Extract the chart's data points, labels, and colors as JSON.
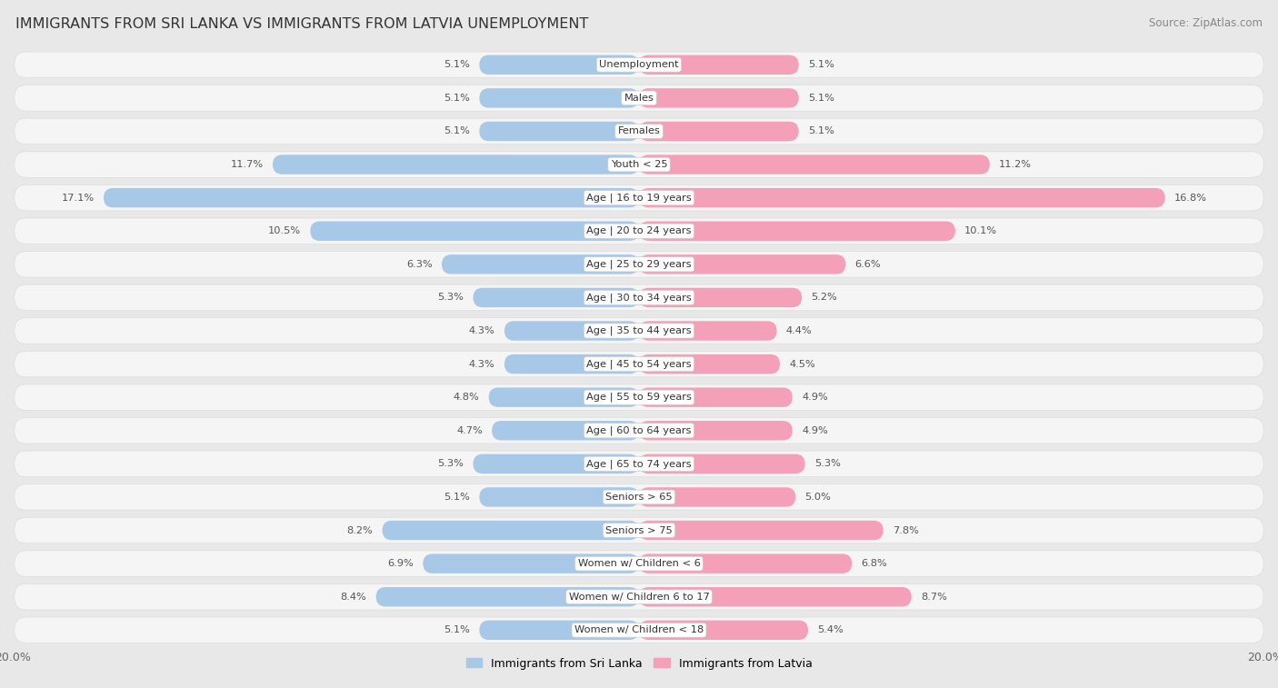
{
  "title": "IMMIGRANTS FROM SRI LANKA VS IMMIGRANTS FROM LATVIA UNEMPLOYMENT",
  "source": "Source: ZipAtlas.com",
  "categories": [
    "Unemployment",
    "Males",
    "Females",
    "Youth < 25",
    "Age | 16 to 19 years",
    "Age | 20 to 24 years",
    "Age | 25 to 29 years",
    "Age | 30 to 34 years",
    "Age | 35 to 44 years",
    "Age | 45 to 54 years",
    "Age | 55 to 59 years",
    "Age | 60 to 64 years",
    "Age | 65 to 74 years",
    "Seniors > 65",
    "Seniors > 75",
    "Women w/ Children < 6",
    "Women w/ Children 6 to 17",
    "Women w/ Children < 18"
  ],
  "sri_lanka": [
    5.1,
    5.1,
    5.1,
    11.7,
    17.1,
    10.5,
    6.3,
    5.3,
    4.3,
    4.3,
    4.8,
    4.7,
    5.3,
    5.1,
    8.2,
    6.9,
    8.4,
    5.1
  ],
  "latvia": [
    5.1,
    5.1,
    5.1,
    11.2,
    16.8,
    10.1,
    6.6,
    5.2,
    4.4,
    4.5,
    4.9,
    4.9,
    5.3,
    5.0,
    7.8,
    6.8,
    8.7,
    5.4
  ],
  "color_sri_lanka": "#a8c8e8",
  "color_latvia": "#f4a0b8",
  "bg_color": "#e8e8e8",
  "row_bg_color": "#f5f5f5",
  "max_val": 20.0,
  "legend_sri_lanka": "Immigrants from Sri Lanka",
  "legend_latvia": "Immigrants from Latvia",
  "label_color": "#555555",
  "value_color": "#555555",
  "title_color": "#333333",
  "source_color": "#888888"
}
